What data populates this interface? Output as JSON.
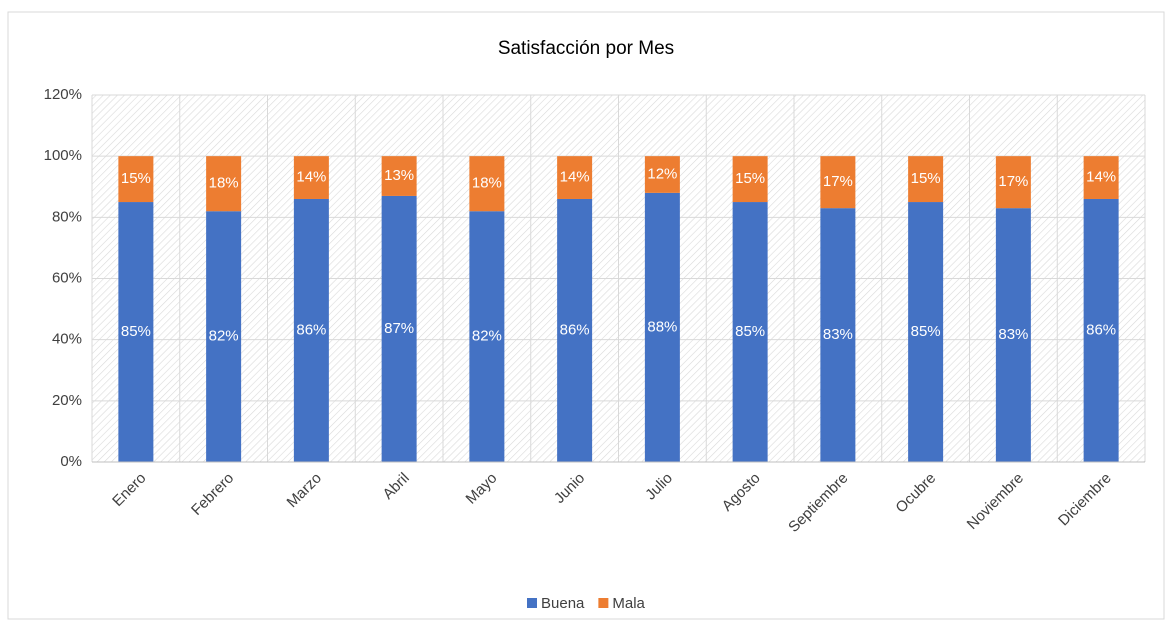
{
  "chart_data": {
    "type": "stacked_bar",
    "title": "Satisfacción por Mes",
    "categories": [
      "Enero",
      "Febrero",
      "Marzo",
      "Abril",
      "Mayo",
      "Junio",
      "Julio",
      "Agosto",
      "Septiembre",
      "Ocubre",
      "Noviembre",
      "Diciembre"
    ],
    "series": [
      {
        "name": "Buena",
        "color": "#4472c4",
        "values": [
          85,
          82,
          86,
          87,
          82,
          86,
          88,
          85,
          83,
          85,
          83,
          86
        ],
        "value_labels": [
          "85%",
          "82%",
          "86%",
          "87%",
          "82%",
          "86%",
          "88%",
          "85%",
          "83%",
          "85%",
          "83%",
          "86%"
        ]
      },
      {
        "name": "Mala",
        "color": "#ed7d31",
        "values": [
          15,
          18,
          14,
          13,
          18,
          14,
          12,
          15,
          17,
          15,
          17,
          14
        ],
        "value_labels": [
          "15%",
          "18%",
          "14%",
          "13%",
          "18%",
          "14%",
          "12%",
          "15%",
          "17%",
          "15%",
          "17%",
          "14%"
        ]
      }
    ],
    "ylim": [
      0,
      120
    ],
    "yticks": [
      {
        "value": 0,
        "label": "0%"
      },
      {
        "value": 20,
        "label": "20%"
      },
      {
        "value": 40,
        "label": "40%"
      },
      {
        "value": 60,
        "label": "60%"
      },
      {
        "value": 80,
        "label": "80%"
      },
      {
        "value": 100,
        "label": "100%"
      },
      {
        "value": 120,
        "label": "120%"
      }
    ],
    "grid": true,
    "legend": "bottom"
  }
}
